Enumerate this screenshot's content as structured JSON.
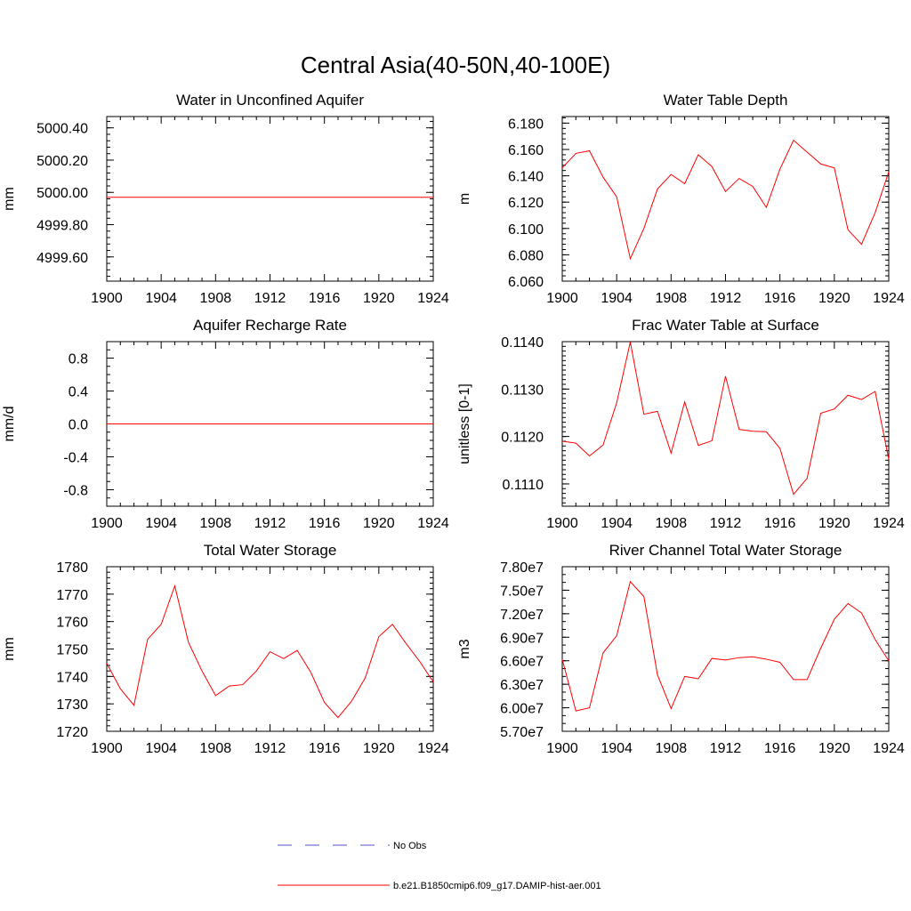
{
  "suptitle": "Central Asia(40-50N,40-100E)",
  "legend": [
    {
      "label": "No Obs",
      "color": "#5050c8",
      "style": "dashed"
    },
    {
      "label": "b.e21.B1850cmip6.f09_g17.DAMIP-hist-aer.001",
      "color": "#ff0000",
      "style": "solid"
    }
  ],
  "chart_data": [
    {
      "type": "line",
      "title": "Water in Unconfined Aquifer",
      "ylabel": "mm",
      "xlim": [
        1900,
        1924
      ],
      "ylim": [
        4999.45,
        5000.47
      ],
      "xticks": [
        "1900",
        "1904",
        "1908",
        "1912",
        "1916",
        "1920",
        "1924"
      ],
      "yticks": [
        {
          "value": 4999.6,
          "label": "4999.60"
        },
        {
          "value": 4999.8,
          "label": "4999.80"
        },
        {
          "value": 5000.0,
          "label": "5000.00"
        },
        {
          "value": 5000.2,
          "label": "5000.20"
        },
        {
          "value": 5000.4,
          "label": "5000.40"
        }
      ],
      "yminor": 0.04,
      "series": [
        {
          "color": "#ff0000",
          "x": [
            1900,
            1901,
            1902,
            1903,
            1904,
            1905,
            1906,
            1907,
            1908,
            1909,
            1910,
            1911,
            1912,
            1913,
            1914,
            1915,
            1916,
            1917,
            1918,
            1919,
            1920,
            1921,
            1922,
            1923,
            1924
          ],
          "y": [
            4999.97,
            4999.97,
            4999.97,
            4999.97,
            4999.97,
            4999.97,
            4999.97,
            4999.97,
            4999.97,
            4999.97,
            4999.97,
            4999.97,
            4999.97,
            4999.97,
            4999.97,
            4999.97,
            4999.97,
            4999.97,
            4999.97,
            4999.97,
            4999.97,
            4999.97,
            4999.97,
            4999.97,
            4999.97
          ]
        }
      ]
    },
    {
      "type": "line",
      "title": "Water Table Depth",
      "ylabel": "m",
      "xlim": [
        1900,
        1924
      ],
      "ylim": [
        6.06,
        6.185
      ],
      "xticks": [
        "1900",
        "1904",
        "1908",
        "1912",
        "1916",
        "1920",
        "1924"
      ],
      "yticks": [
        {
          "value": 6.06,
          "label": "6.060"
        },
        {
          "value": 6.08,
          "label": "6.080"
        },
        {
          "value": 6.1,
          "label": "6.100"
        },
        {
          "value": 6.12,
          "label": "6.120"
        },
        {
          "value": 6.14,
          "label": "6.140"
        },
        {
          "value": 6.16,
          "label": "6.160"
        },
        {
          "value": 6.18,
          "label": "6.180"
        }
      ],
      "yminor": 0.004,
      "series": [
        {
          "color": "#ff0000",
          "x": [
            1900,
            1901,
            1902,
            1903,
            1904,
            1905,
            1906,
            1907,
            1908,
            1909,
            1910,
            1911,
            1912,
            1913,
            1914,
            1915,
            1916,
            1917,
            1918,
            1919,
            1920,
            1921,
            1922,
            1923,
            1924
          ],
          "y": [
            6.146,
            6.157,
            6.159,
            6.139,
            6.124,
            6.077,
            6.1,
            6.13,
            6.141,
            6.134,
            6.156,
            6.147,
            6.128,
            6.138,
            6.132,
            6.116,
            6.145,
            6.167,
            6.158,
            6.149,
            6.146,
            6.099,
            6.088,
            6.112,
            6.143
          ]
        }
      ]
    },
    {
      "type": "line",
      "title": "Aquifer Recharge Rate",
      "ylabel": "mm/d",
      "xlim": [
        1900,
        1924
      ],
      "ylim": [
        -1.0,
        1.0
      ],
      "xticks": [
        "1900",
        "1904",
        "1908",
        "1912",
        "1916",
        "1920",
        "1924"
      ],
      "yticks": [
        {
          "value": -0.8,
          "label": "-0.8"
        },
        {
          "value": -0.4,
          "label": "-0.4"
        },
        {
          "value": 0.0,
          "label": "0.0"
        },
        {
          "value": 0.4,
          "label": "0.4"
        },
        {
          "value": 0.8,
          "label": "0.8"
        }
      ],
      "yminor": 0.1,
      "series": [
        {
          "color": "#ff0000",
          "x": [
            1900,
            1901,
            1902,
            1903,
            1904,
            1905,
            1906,
            1907,
            1908,
            1909,
            1910,
            1911,
            1912,
            1913,
            1914,
            1915,
            1916,
            1917,
            1918,
            1919,
            1920,
            1921,
            1922,
            1923,
            1924
          ],
          "y": [
            0,
            0,
            0,
            0,
            0,
            0,
            0,
            0,
            0,
            0,
            0,
            0,
            0,
            0,
            0,
            0,
            0,
            0,
            0,
            0,
            0,
            0,
            0,
            0,
            0
          ]
        }
      ]
    },
    {
      "type": "line",
      "title": "Frac Water Table at Surface",
      "ylabel": "unitless [0-1]",
      "xlim": [
        1900,
        1924
      ],
      "ylim": [
        0.11053,
        0.114
      ],
      "xticks": [
        "1900",
        "1904",
        "1908",
        "1912",
        "1916",
        "1920",
        "1924"
      ],
      "yticks": [
        {
          "value": 0.111,
          "label": "0.1110"
        },
        {
          "value": 0.112,
          "label": "0.1120"
        },
        {
          "value": 0.113,
          "label": "0.1130"
        },
        {
          "value": 0.114,
          "label": "0.1140"
        }
      ],
      "yminor": 0.0001,
      "series": [
        {
          "color": "#ff0000",
          "x": [
            1900,
            1901,
            1902,
            1903,
            1904,
            1905,
            1906,
            1907,
            1908,
            1909,
            1910,
            1911,
            1912,
            1913,
            1914,
            1915,
            1916,
            1917,
            1918,
            1919,
            1920,
            1921,
            1922,
            1923,
            1924
          ],
          "y": [
            0.1119,
            0.11186,
            0.11159,
            0.11182,
            0.11271,
            0.11399,
            0.11247,
            0.11253,
            0.11165,
            0.11273,
            0.11181,
            0.11191,
            0.11327,
            0.11215,
            0.11211,
            0.1121,
            0.11175,
            0.11078,
            0.11112,
            0.11249,
            0.11258,
            0.11287,
            0.11278,
            0.11295,
            0.11152
          ]
        }
      ]
    },
    {
      "type": "line",
      "title": "Total Water Storage",
      "ylabel": "mm",
      "xlim": [
        1900,
        1924
      ],
      "ylim": [
        1720,
        1780
      ],
      "xticks": [
        "1900",
        "1904",
        "1908",
        "1912",
        "1916",
        "1920",
        "1924"
      ],
      "yticks": [
        {
          "value": 1720,
          "label": "1720"
        },
        {
          "value": 1730,
          "label": "1730"
        },
        {
          "value": 1740,
          "label": "1740"
        },
        {
          "value": 1750,
          "label": "1750"
        },
        {
          "value": 1760,
          "label": "1760"
        },
        {
          "value": 1770,
          "label": "1770"
        },
        {
          "value": 1780,
          "label": "1780"
        }
      ],
      "yminor": 2,
      "series": [
        {
          "color": "#ff0000",
          "x": [
            1900,
            1901,
            1902,
            1903,
            1904,
            1905,
            1906,
            1907,
            1908,
            1909,
            1910,
            1911,
            1912,
            1913,
            1914,
            1915,
            1916,
            1917,
            1918,
            1919,
            1920,
            1921,
            1922,
            1923,
            1924
          ],
          "y": [
            1744.8,
            1735.5,
            1729.5,
            1753.5,
            1759.0,
            1773.0,
            1752.5,
            1742.0,
            1733.0,
            1736.5,
            1737.0,
            1742.0,
            1749.0,
            1746.5,
            1749.5,
            1741.5,
            1730.5,
            1725.0,
            1731.0,
            1739.5,
            1754.5,
            1759.0,
            1752.0,
            1745.5,
            1738.0
          ]
        }
      ]
    },
    {
      "type": "line",
      "title": "River Channel Total Water Storage",
      "ylabel": "m3",
      "xlim": [
        1900,
        1924
      ],
      "ylim": [
        57000000.0,
        78000000.0
      ],
      "xticks": [
        "1900",
        "1904",
        "1908",
        "1912",
        "1916",
        "1920",
        "1924"
      ],
      "yticks": [
        {
          "value": 57000000.0,
          "label": "5.70e7"
        },
        {
          "value": 60000000.0,
          "label": "6.00e7"
        },
        {
          "value": 63000000.0,
          "label": "6.30e7"
        },
        {
          "value": 66000000.0,
          "label": "6.60e7"
        },
        {
          "value": 69000000.0,
          "label": "6.90e7"
        },
        {
          "value": 72000000.0,
          "label": "7.20e7"
        },
        {
          "value": 75000000.0,
          "label": "7.50e7"
        },
        {
          "value": 78000000.0,
          "label": "7.80e7"
        }
      ],
      "yminor": 1000000.0,
      "series": [
        {
          "color": "#ff0000",
          "x": [
            1900,
            1901,
            1902,
            1903,
            1904,
            1905,
            1906,
            1907,
            1908,
            1909,
            1910,
            1911,
            1912,
            1913,
            1914,
            1915,
            1916,
            1917,
            1918,
            1919,
            1920,
            1921,
            1922,
            1923,
            1924
          ],
          "y": [
            66200000.0,
            59600000.0,
            60000000.0,
            67000000.0,
            69200000.0,
            76100000.0,
            74200000.0,
            64200000.0,
            59900000.0,
            64000000.0,
            63700000.0,
            66300000.0,
            66100000.0,
            66400000.0,
            66500000.0,
            66200000.0,
            65800000.0,
            63600000.0,
            63600000.0,
            67600000.0,
            71300000.0,
            73300000.0,
            72100000.0,
            68700000.0,
            66000000.0
          ]
        }
      ]
    }
  ]
}
